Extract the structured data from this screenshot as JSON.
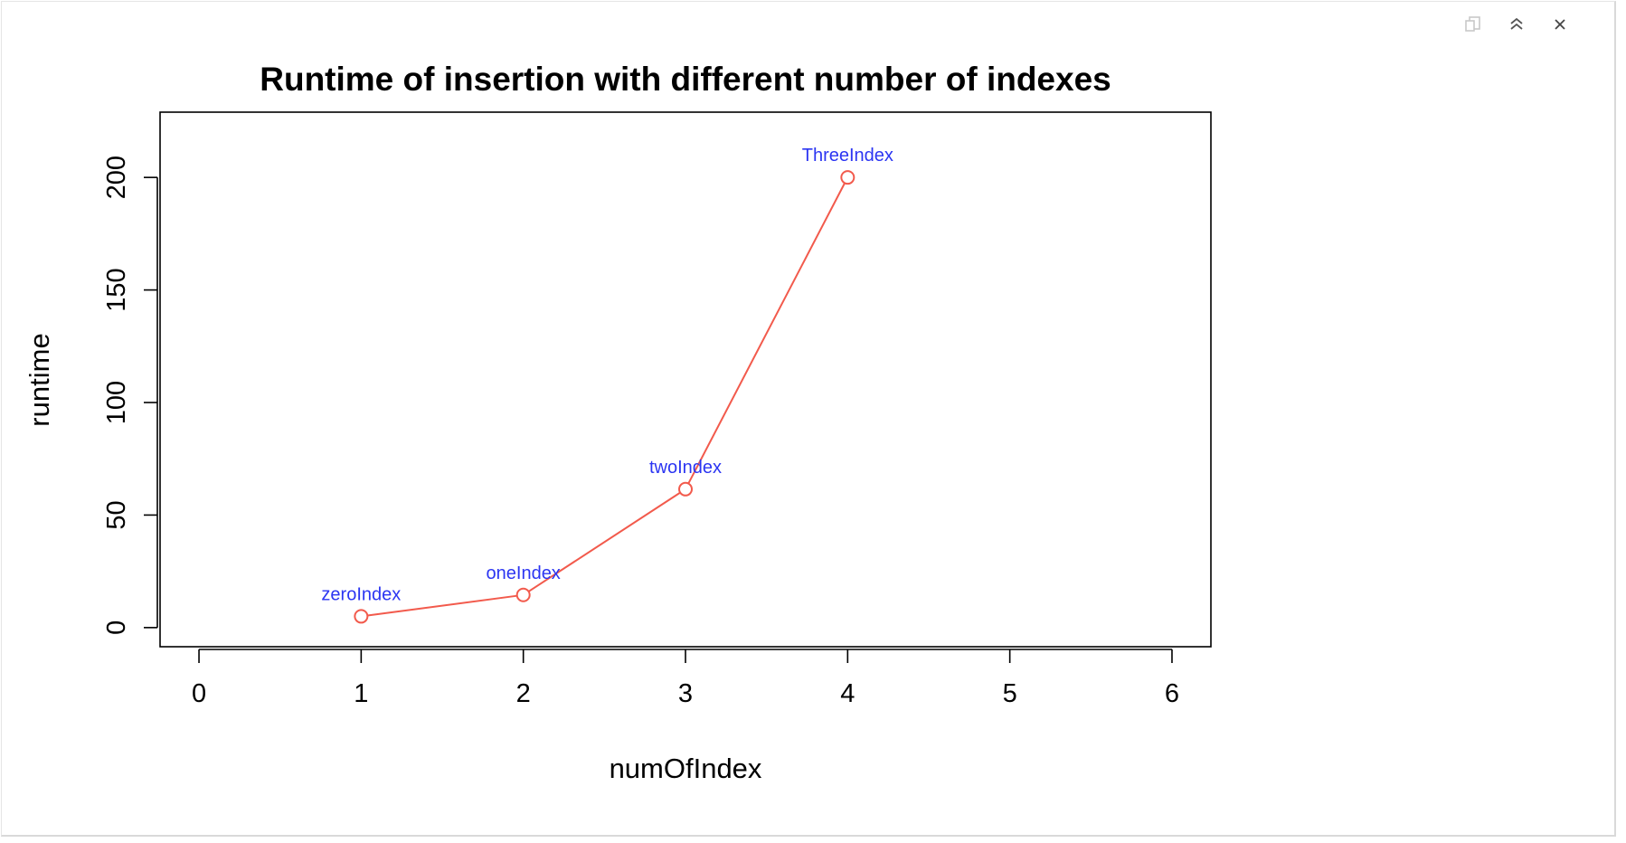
{
  "window": {
    "toolbar": {
      "popout_icon": "popout-icon",
      "collapse_icon": "collapse-icon",
      "close_icon": "close-icon"
    }
  },
  "chart_data": {
    "type": "line",
    "title": "Runtime of insertion with different number of indexes",
    "xlabel": "numOfIndex",
    "ylabel": "runtime",
    "xlim": [
      -0.24,
      6.24
    ],
    "ylim": [
      -8.5,
      229
    ],
    "x_ticks": [
      0,
      1,
      2,
      3,
      4,
      5,
      6
    ],
    "y_ticks": [
      0,
      50,
      100,
      150,
      200
    ],
    "grid": false,
    "legend": "none",
    "line_color": "#f25a4c",
    "label_color": "#2b35f2",
    "series": [
      {
        "x": [
          1,
          2,
          3,
          4
        ],
        "y": [
          5,
          14.5,
          61.5,
          200
        ],
        "point_labels": [
          "zeroIndex",
          "oneIndex",
          "twoIndex",
          "ThreeIndex"
        ]
      }
    ]
  }
}
